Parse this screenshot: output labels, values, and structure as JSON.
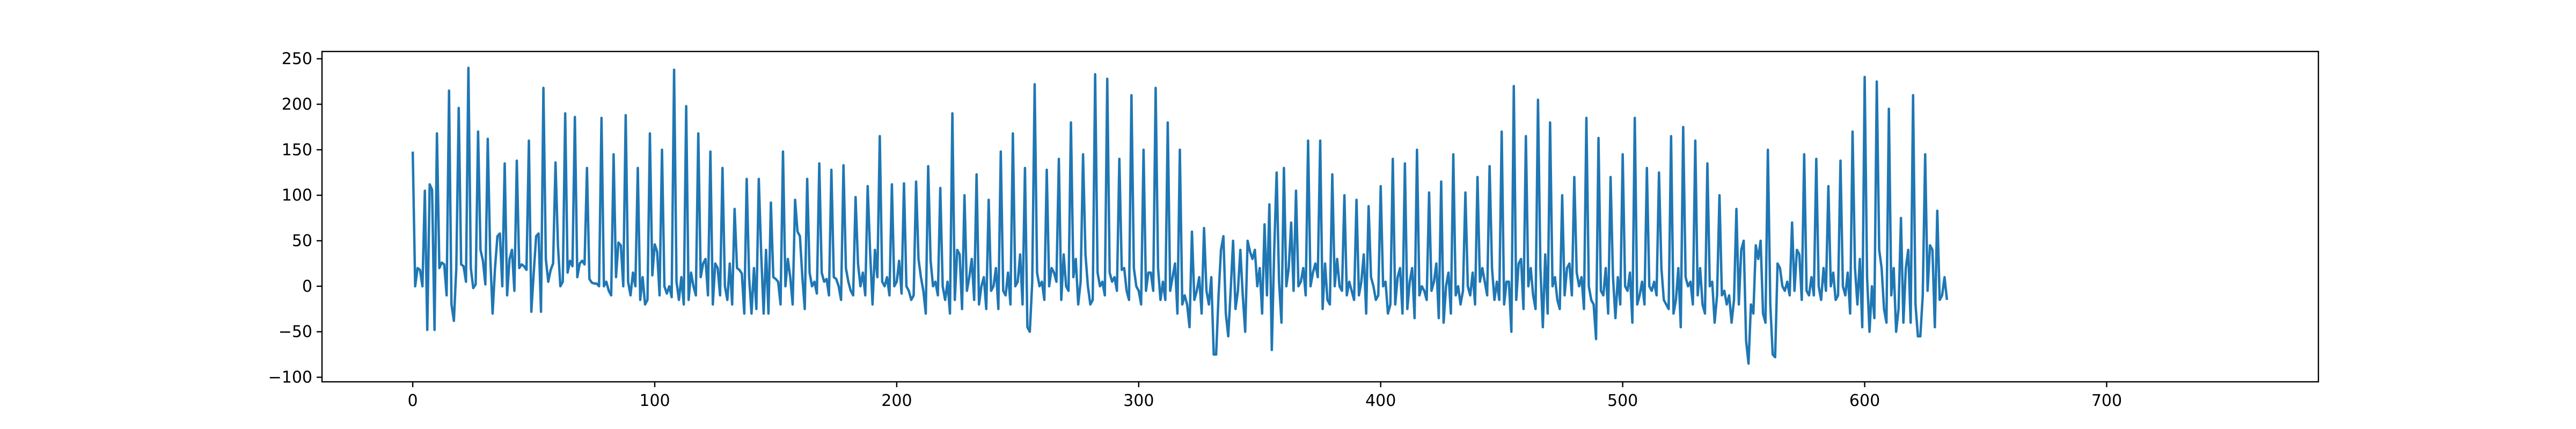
{
  "chart_data": {
    "type": "line",
    "title": "",
    "xlabel": "",
    "ylabel": "",
    "xlim": [
      -37.5,
      787.5
    ],
    "ylim": [
      -105,
      258
    ],
    "xticks": [
      0,
      100,
      200,
      300,
      400,
      500,
      600,
      700
    ],
    "yticks": [
      -100,
      -50,
      0,
      50,
      100,
      150,
      200,
      250
    ],
    "grid": false,
    "legend": "none",
    "series": [
      {
        "color": "#1f77b4",
        "x_start": 0,
        "x_step": 1,
        "values": [
          148,
          0,
          20,
          18,
          0,
          105,
          -48,
          112,
          106,
          -48,
          168,
          20,
          26,
          24,
          -10,
          215,
          -20,
          -38,
          20,
          196,
          24,
          22,
          5,
          240,
          20,
          -2,
          2,
          170,
          40,
          28,
          2,
          162,
          35,
          -30,
          20,
          55,
          58,
          0,
          135,
          -10,
          30,
          40,
          -5,
          138,
          20,
          24,
          22,
          18,
          160,
          -28,
          15,
          55,
          58,
          -28,
          218,
          30,
          5,
          18,
          25,
          136,
          45,
          0,
          5,
          190,
          15,
          28,
          22,
          186,
          10,
          25,
          28,
          24,
          130,
          8,
          4,
          3,
          3,
          0,
          185,
          0,
          5,
          -5,
          -10,
          145,
          10,
          48,
          45,
          0,
          188,
          5,
          -10,
          15,
          0,
          130,
          -15,
          10,
          -20,
          -15,
          168,
          12,
          46,
          38,
          -10,
          150,
          0,
          -8,
          0,
          -12,
          238,
          5,
          -15,
          10,
          -20,
          198,
          -15,
          15,
          0,
          -10,
          168,
          10,
          25,
          30,
          -10,
          148,
          -20,
          25,
          20,
          -10,
          130,
          0,
          -15,
          25,
          -20,
          85,
          20,
          18,
          14,
          -30,
          118,
          10,
          -30,
          20,
          -25,
          118,
          35,
          -30,
          40,
          -30,
          92,
          10,
          8,
          5,
          -20,
          148,
          0,
          30,
          10,
          -20,
          95,
          60,
          55,
          10,
          -25,
          118,
          15,
          0,
          5,
          -8,
          135,
          15,
          5,
          8,
          -10,
          128,
          10,
          8,
          0,
          -15,
          133,
          20,
          5,
          -5,
          -10,
          98,
          25,
          0,
          15,
          -10,
          110,
          38,
          -20,
          40,
          10,
          165,
          5,
          0,
          10,
          -10,
          112,
          0,
          5,
          28,
          -8,
          113,
          0,
          -5,
          -15,
          -10,
          115,
          30,
          10,
          -5,
          -30,
          132,
          28,
          0,
          5,
          -10,
          108,
          0,
          -15,
          5,
          -30,
          190,
          -15,
          40,
          35,
          -25,
          100,
          -5,
          10,
          30,
          -15,
          123,
          -20,
          0,
          10,
          -25,
          95,
          -5,
          0,
          20,
          -25,
          148,
          -5,
          -10,
          15,
          -20,
          168,
          0,
          5,
          35,
          -20,
          130,
          -45,
          -50,
          5,
          222,
          15,
          0,
          5,
          -15,
          128,
          0,
          20,
          15,
          5,
          140,
          -15,
          35,
          0,
          -5,
          180,
          10,
          30,
          -20,
          5,
          145,
          35,
          0,
          -20,
          -15,
          233,
          15,
          0,
          5,
          -10,
          228,
          15,
          5,
          10,
          -5,
          140,
          18,
          20,
          -5,
          -15,
          210,
          20,
          0,
          -5,
          -20,
          150,
          -5,
          15,
          15,
          -5,
          218,
          20,
          -15,
          5,
          -15,
          180,
          -5,
          10,
          25,
          -30,
          150,
          -20,
          -10,
          -20,
          -45,
          60,
          -15,
          -5,
          10,
          -30,
          64,
          -5,
          -20,
          10,
          -75,
          -75,
          -10,
          40,
          55,
          -30,
          -55,
          -5,
          50,
          -25,
          -5,
          40,
          -10,
          -50,
          50,
          38,
          30,
          40,
          0,
          20,
          -30,
          68,
          -10,
          90,
          -70,
          40,
          125,
          5,
          -40,
          130,
          0,
          20,
          70,
          -5,
          105,
          0,
          5,
          20,
          -10,
          160,
          0,
          15,
          25,
          10,
          160,
          -25,
          25,
          -15,
          -20,
          123,
          0,
          30,
          0,
          -5,
          100,
          -10,
          5,
          -5,
          -15,
          95,
          -10,
          5,
          35,
          -30,
          88,
          10,
          0,
          -15,
          -10,
          110,
          0,
          5,
          -30,
          -20,
          140,
          -20,
          10,
          20,
          -30,
          135,
          -25,
          5,
          20,
          -35,
          150,
          -10,
          0,
          -5,
          -15,
          103,
          -5,
          5,
          25,
          -35,
          115,
          -40,
          0,
          15,
          -30,
          145,
          -10,
          0,
          -20,
          -5,
          103,
          0,
          -10,
          15,
          -20,
          120,
          5,
          20,
          5,
          -10,
          132,
          20,
          -15,
          5,
          -15,
          170,
          -20,
          5,
          5,
          -50,
          220,
          -15,
          25,
          30,
          -25,
          165,
          0,
          20,
          -10,
          -25,
          205,
          20,
          -45,
          35,
          -30,
          180,
          0,
          10,
          -15,
          -25,
          100,
          -10,
          20,
          25,
          -10,
          120,
          15,
          0,
          10,
          -25,
          185,
          0,
          -15,
          -20,
          -58,
          163,
          -5,
          -10,
          20,
          -30,
          120,
          10,
          -35,
          10,
          -20,
          145,
          0,
          -5,
          15,
          -40,
          185,
          -20,
          -10,
          5,
          -20,
          130,
          0,
          -5,
          5,
          -10,
          125,
          20,
          -15,
          -20,
          -25,
          165,
          -30,
          -15,
          20,
          -45,
          175,
          10,
          0,
          5,
          -20,
          160,
          -10,
          20,
          -20,
          -30,
          135,
          0,
          5,
          -40,
          -10,
          100,
          -10,
          -5,
          -20,
          -10,
          -40,
          -15,
          85,
          -20,
          40,
          50,
          -60,
          -85,
          -20,
          -30,
          45,
          30,
          50,
          -30,
          -40,
          150,
          -20,
          -75,
          -78,
          25,
          20,
          0,
          -5,
          5,
          -10,
          70,
          -5,
          40,
          35,
          -15,
          145,
          -5,
          -10,
          10,
          -10,
          140,
          0,
          -15,
          20,
          -5,
          110,
          0,
          15,
          -15,
          -10,
          138,
          0,
          -10,
          15,
          -30,
          170,
          20,
          -20,
          30,
          -45,
          230,
          10,
          -50,
          0,
          -35,
          225,
          40,
          20,
          -25,
          -40,
          195,
          -10,
          20,
          -50,
          -25,
          75,
          -40,
          20,
          40,
          -40,
          210,
          -20,
          -55,
          -55,
          -10,
          145,
          -5,
          45,
          40,
          -45,
          83,
          -15,
          -10,
          10,
          -15
        ]
      }
    ]
  }
}
